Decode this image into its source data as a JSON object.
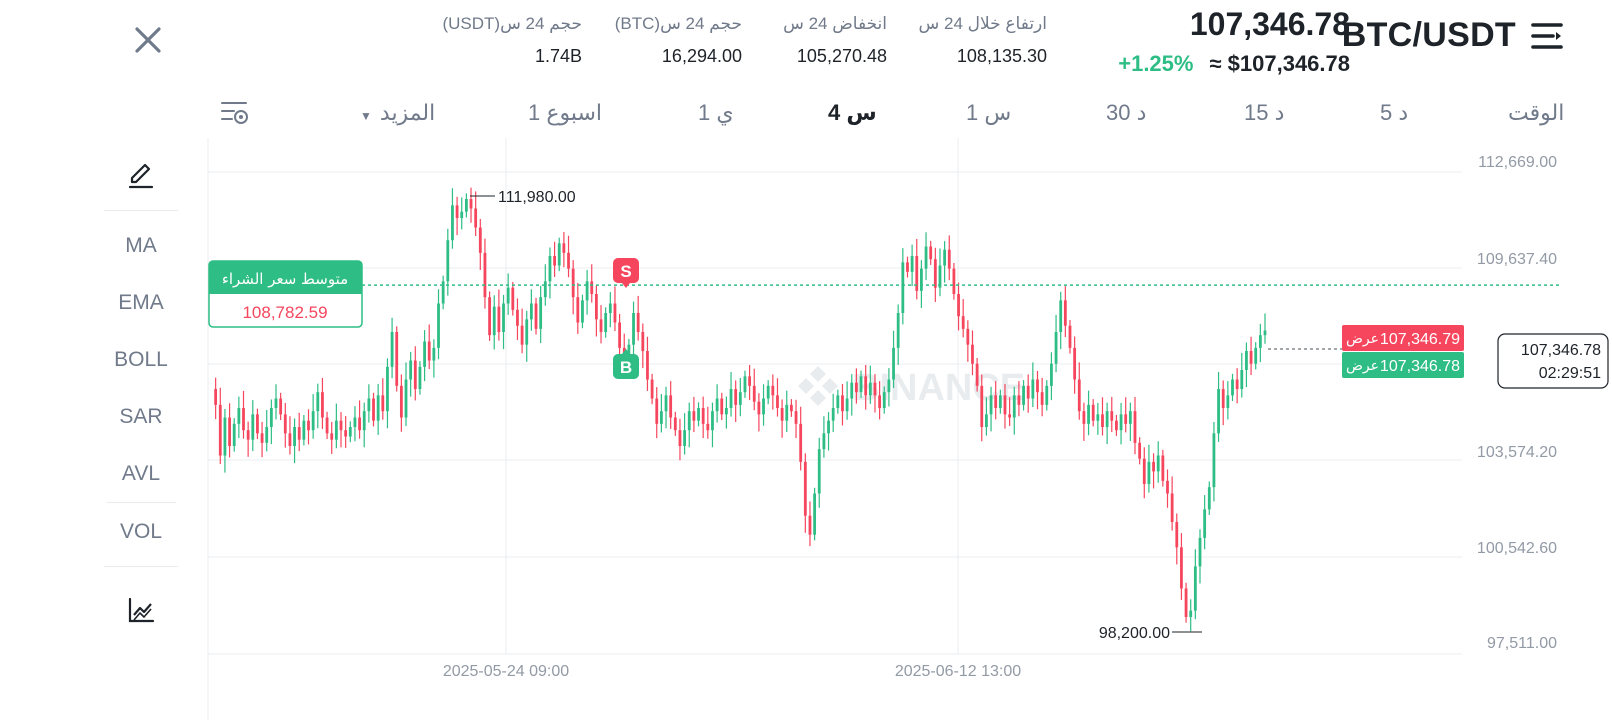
{
  "header": {
    "pair": "BTC/USDT",
    "last_price": "107,346.78",
    "change_pct": "+1.25%",
    "approx_price": "≈ $107,346.78",
    "stats": [
      {
        "label": "ارتفاع خلال 24 س",
        "value": "108,135.30"
      },
      {
        "label": "انخفاض 24 س",
        "value": "105,270.48"
      },
      {
        "label": "حجم 24 س(BTC)",
        "value": "16,294.00"
      },
      {
        "label": "حجم 24 س(USDT)",
        "value": "1.74B"
      }
    ]
  },
  "timeframes": {
    "label": "الوقت",
    "items": [
      "5 د",
      "15 د",
      "30 د",
      "1 س",
      "4 س",
      "1 ي",
      "1 اسبوع"
    ],
    "active": "4 س",
    "more": "المزيد"
  },
  "indicators": [
    "MA",
    "EMA",
    "BOLL",
    "SAR",
    "AVL",
    "VOL"
  ],
  "chart_data": {
    "type": "candlestick",
    "y_ticks": [
      "112,669.00",
      "109,637.40",
      "103,574.20",
      "100,542.60",
      "97,511.00"
    ],
    "y_range": [
      97511.0,
      112669.0
    ],
    "x_ticks": [
      "2025-05-24 09:00",
      "2025-06-12 13:00"
    ],
    "high_marker": "111,980.00",
    "low_marker": "98,200.00",
    "avg_buy_label": "متوسط سعر الشراء",
    "avg_buy_value": "108,782.59",
    "avg_buy_level": 108782.59,
    "ask_label": "عرض",
    "ask_price": "107,346.79",
    "bid_label": "عرض",
    "bid_price": "107,346.78",
    "current_price": "107,346.78",
    "countdown": "02:29:51",
    "sell_marker": "S",
    "buy_marker": "B",
    "watermark": "BINANCE",
    "up_color": "#2ebd85",
    "down_color": "#f6465d",
    "path": [
      105500,
      105000,
      103400,
      104600,
      103700,
      104400,
      104900,
      104200,
      103900,
      104700,
      104100,
      103800,
      104300,
      104900,
      105200,
      104700,
      104100,
      103700,
      104300,
      103900,
      104500,
      104200,
      104800,
      105400,
      104600,
      104100,
      103900,
      104500,
      104200,
      104000,
      104300,
      104600,
      104200,
      104800,
      105200,
      104500,
      105300,
      104800,
      106200,
      107300,
      105600,
      104600,
      105800,
      106400,
      105500,
      106200,
      107000,
      106400,
      106800,
      108200,
      108900,
      110200,
      111300,
      110900,
      111100,
      111500,
      111200,
      110600,
      109800,
      108400,
      107200,
      108100,
      107300,
      108200,
      108700,
      108000,
      107500,
      106900,
      107700,
      108200,
      107400,
      108400,
      108900,
      109700,
      109400,
      110100,
      109800,
      109300,
      108400,
      107600,
      108300,
      108900,
      108500,
      107700,
      107300,
      107900,
      108200,
      107600,
      106800,
      106300,
      106900,
      107900,
      107300,
      106700,
      105800,
      105200,
      104400,
      104800,
      105300,
      104600,
      104200,
      103700,
      104200,
      104800,
      104500,
      104900,
      104400,
      104200,
      104800,
      105200,
      104700,
      104900,
      105500,
      105000,
      105400,
      105900,
      105600,
      105100,
      104700,
      105200,
      105600,
      105300,
      104900,
      104500,
      105000,
      104800,
      104400,
      103200,
      101500,
      100900,
      102200,
      103600,
      104100,
      104500,
      104900,
      105300,
      104800,
      105200,
      105700,
      105400,
      105900,
      105300,
      105700,
      105300,
      104900,
      105400,
      105800,
      106800,
      107900,
      109500,
      109200,
      109700,
      108600,
      109300,
      110000,
      109600,
      108700,
      109400,
      109900,
      109300,
      108500,
      107800,
      107400,
      106900,
      106300,
      105600,
      104300,
      104700,
      105300,
      104900,
      105300,
      104700,
      104600,
      105300,
      105000,
      105600,
      105200,
      105800,
      105400,
      105000,
      105600,
      106300,
      107300,
      108300,
      107500,
      106800,
      105800,
      104800,
      104400,
      105000,
      104500,
      104700,
      104300,
      104800,
      104500,
      104200,
      104700,
      104400,
      104800,
      103800,
      103300,
      102500,
      103200,
      102900,
      103400,
      102600,
      102200,
      101300,
      100500,
      99200,
      98300,
      98500,
      99900,
      100800,
      101700,
      102400,
      104100,
      105500,
      104900,
      105300,
      105800,
      105500,
      106100,
      106700,
      106300,
      106800,
      107200,
      107346
    ]
  }
}
